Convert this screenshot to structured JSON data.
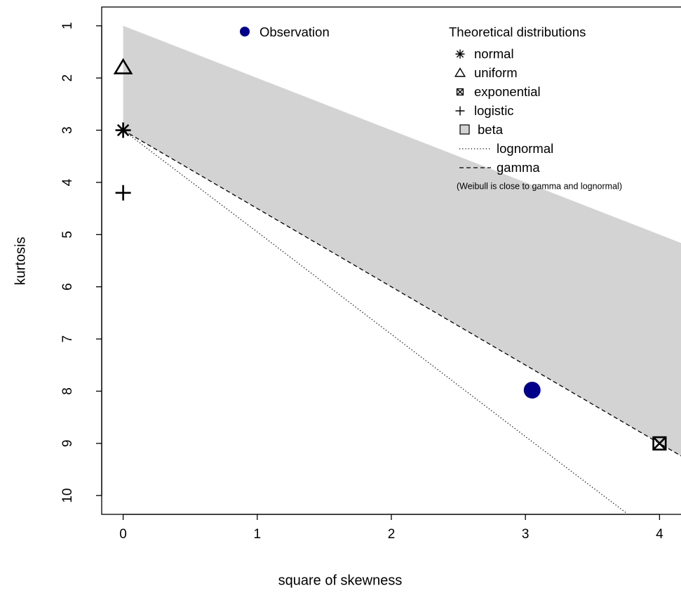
{
  "chart_data": {
    "type": "scatter",
    "xlabel": "square of skewness",
    "ylabel": "kurtosis",
    "xlim": [
      -0.16,
      4.16
    ],
    "ylim": [
      10.36,
      0.64
    ],
    "xticks": [
      0,
      1,
      2,
      3,
      4
    ],
    "yticks": [
      1,
      2,
      3,
      4,
      5,
      6,
      7,
      8,
      9,
      10
    ],
    "legend_title": "Theoretical distributions",
    "note": "(Weibull is close to gamma and lognormal)",
    "series": [
      {
        "name": "Observation",
        "kind": "point",
        "marker": "circle",
        "color": "#00008b",
        "legend": "left",
        "x": [
          3.05
        ],
        "y": [
          7.98
        ]
      },
      {
        "name": "normal",
        "kind": "point",
        "marker": "asterisk",
        "color": "#000000",
        "legend": "right",
        "x": [
          0
        ],
        "y": [
          3
        ]
      },
      {
        "name": "uniform",
        "kind": "point",
        "marker": "triangle",
        "color": "#000000",
        "legend": "right",
        "x": [
          0
        ],
        "y": [
          1.8
        ]
      },
      {
        "name": "exponential",
        "kind": "point",
        "marker": "boxx",
        "color": "#000000",
        "legend": "right",
        "x": [
          4
        ],
        "y": [
          9
        ]
      },
      {
        "name": "logistic",
        "kind": "point",
        "marker": "plus",
        "color": "#000000",
        "legend": "right",
        "x": [
          0
        ],
        "y": [
          4.2
        ]
      },
      {
        "name": "beta",
        "kind": "area",
        "color": "#d3d3d3",
        "legend": "right",
        "x": [
          0,
          4.16,
          4.16,
          0
        ],
        "y": [
          1,
          5.16,
          9.24,
          3
        ]
      },
      {
        "name": "lognormal",
        "kind": "line",
        "dash": "dotted",
        "color": "#000000",
        "legend": "right",
        "x": [
          0,
          1,
          2,
          3,
          3.75
        ],
        "y": [
          3,
          4.95,
          6.91,
          8.87,
          10.33
        ]
      },
      {
        "name": "gamma",
        "kind": "line",
        "dash": "dashed",
        "color": "#000000",
        "legend": "right",
        "x": [
          0,
          4.16
        ],
        "y": [
          3,
          9.24
        ]
      }
    ]
  }
}
